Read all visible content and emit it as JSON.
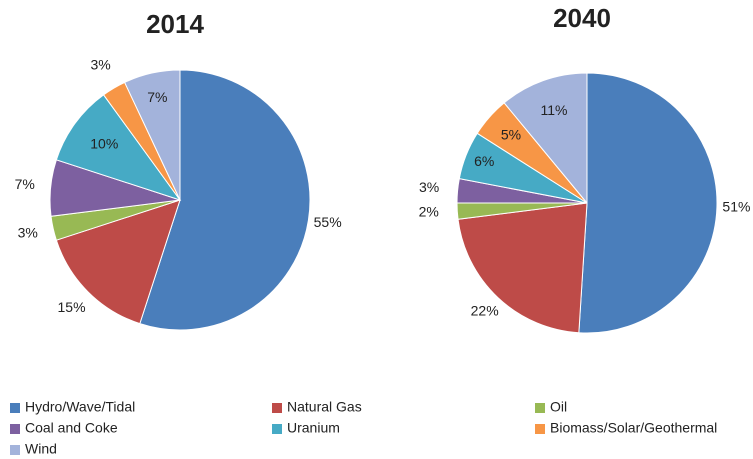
{
  "legend": {
    "categories": [
      "Hydro/Wave/Tidal",
      "Natural Gas",
      "Oil",
      "Coal and Coke",
      "Uranium",
      "Biomass/Solar/Geothermal",
      "Wind"
    ],
    "colors": [
      "#4a7ebb",
      "#be4b48",
      "#98b954",
      "#7d60a0",
      "#46aac5",
      "#f79646",
      "#a3b3db"
    ]
  },
  "chart_data": [
    {
      "type": "pie",
      "title": "2014",
      "values": [
        55,
        15,
        3,
        7,
        10,
        3,
        7
      ],
      "value_labels": [
        "55%",
        "15%",
        "3%",
        "7%",
        "10%",
        "3%",
        "7%"
      ]
    },
    {
      "type": "pie",
      "title": "2040",
      "values": [
        51,
        22,
        2,
        3,
        6,
        5,
        11
      ],
      "value_labels": [
        "51%",
        "22%",
        "2%",
        "3%",
        "6%",
        "5%",
        "11%"
      ]
    }
  ]
}
